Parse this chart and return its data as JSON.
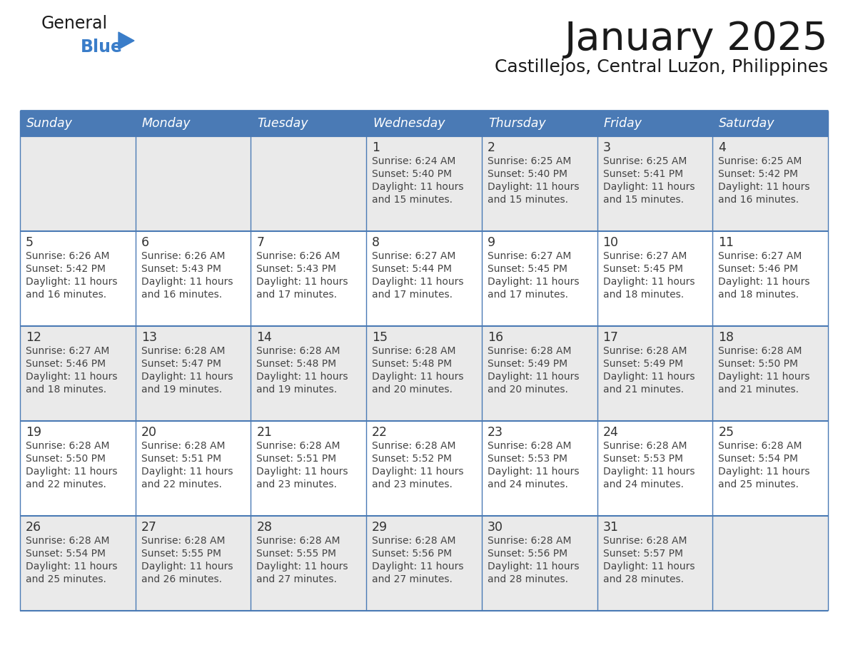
{
  "title": "January 2025",
  "subtitle": "Castillejos, Central Luzon, Philippines",
  "days_of_week": [
    "Sunday",
    "Monday",
    "Tuesday",
    "Wednesday",
    "Thursday",
    "Friday",
    "Saturday"
  ],
  "header_bg": "#4a7ab5",
  "header_text": "#FFFFFF",
  "row_bg_odd": "#EAEAEA",
  "row_bg_even": "#FFFFFF",
  "border_color": "#4a7ab5",
  "day_num_color": "#333333",
  "info_text_color": "#444444",
  "title_color": "#1a1a1a",
  "subtitle_color": "#1a1a1a",
  "logo_general_color": "#1a1a1a",
  "logo_blue_color": "#3A7DC9",
  "calendar_data": [
    [
      {
        "day": null,
        "sunrise": null,
        "sunset": null,
        "daylight": null
      },
      {
        "day": null,
        "sunrise": null,
        "sunset": null,
        "daylight": null
      },
      {
        "day": null,
        "sunrise": null,
        "sunset": null,
        "daylight": null
      },
      {
        "day": 1,
        "sunrise": "6:24 AM",
        "sunset": "5:40 PM",
        "daylight": "11 hours and 15 minutes."
      },
      {
        "day": 2,
        "sunrise": "6:25 AM",
        "sunset": "5:40 PM",
        "daylight": "11 hours and 15 minutes."
      },
      {
        "day": 3,
        "sunrise": "6:25 AM",
        "sunset": "5:41 PM",
        "daylight": "11 hours and 15 minutes."
      },
      {
        "day": 4,
        "sunrise": "6:25 AM",
        "sunset": "5:42 PM",
        "daylight": "11 hours and 16 minutes."
      }
    ],
    [
      {
        "day": 5,
        "sunrise": "6:26 AM",
        "sunset": "5:42 PM",
        "daylight": "11 hours and 16 minutes."
      },
      {
        "day": 6,
        "sunrise": "6:26 AM",
        "sunset": "5:43 PM",
        "daylight": "11 hours and 16 minutes."
      },
      {
        "day": 7,
        "sunrise": "6:26 AM",
        "sunset": "5:43 PM",
        "daylight": "11 hours and 17 minutes."
      },
      {
        "day": 8,
        "sunrise": "6:27 AM",
        "sunset": "5:44 PM",
        "daylight": "11 hours and 17 minutes."
      },
      {
        "day": 9,
        "sunrise": "6:27 AM",
        "sunset": "5:45 PM",
        "daylight": "11 hours and 17 minutes."
      },
      {
        "day": 10,
        "sunrise": "6:27 AM",
        "sunset": "5:45 PM",
        "daylight": "11 hours and 18 minutes."
      },
      {
        "day": 11,
        "sunrise": "6:27 AM",
        "sunset": "5:46 PM",
        "daylight": "11 hours and 18 minutes."
      }
    ],
    [
      {
        "day": 12,
        "sunrise": "6:27 AM",
        "sunset": "5:46 PM",
        "daylight": "11 hours and 18 minutes."
      },
      {
        "day": 13,
        "sunrise": "6:28 AM",
        "sunset": "5:47 PM",
        "daylight": "11 hours and 19 minutes."
      },
      {
        "day": 14,
        "sunrise": "6:28 AM",
        "sunset": "5:48 PM",
        "daylight": "11 hours and 19 minutes."
      },
      {
        "day": 15,
        "sunrise": "6:28 AM",
        "sunset": "5:48 PM",
        "daylight": "11 hours and 20 minutes."
      },
      {
        "day": 16,
        "sunrise": "6:28 AM",
        "sunset": "5:49 PM",
        "daylight": "11 hours and 20 minutes."
      },
      {
        "day": 17,
        "sunrise": "6:28 AM",
        "sunset": "5:49 PM",
        "daylight": "11 hours and 21 minutes."
      },
      {
        "day": 18,
        "sunrise": "6:28 AM",
        "sunset": "5:50 PM",
        "daylight": "11 hours and 21 minutes."
      }
    ],
    [
      {
        "day": 19,
        "sunrise": "6:28 AM",
        "sunset": "5:50 PM",
        "daylight": "11 hours and 22 minutes."
      },
      {
        "day": 20,
        "sunrise": "6:28 AM",
        "sunset": "5:51 PM",
        "daylight": "11 hours and 22 minutes."
      },
      {
        "day": 21,
        "sunrise": "6:28 AM",
        "sunset": "5:51 PM",
        "daylight": "11 hours and 23 minutes."
      },
      {
        "day": 22,
        "sunrise": "6:28 AM",
        "sunset": "5:52 PM",
        "daylight": "11 hours and 23 minutes."
      },
      {
        "day": 23,
        "sunrise": "6:28 AM",
        "sunset": "5:53 PM",
        "daylight": "11 hours and 24 minutes."
      },
      {
        "day": 24,
        "sunrise": "6:28 AM",
        "sunset": "5:53 PM",
        "daylight": "11 hours and 24 minutes."
      },
      {
        "day": 25,
        "sunrise": "6:28 AM",
        "sunset": "5:54 PM",
        "daylight": "11 hours and 25 minutes."
      }
    ],
    [
      {
        "day": 26,
        "sunrise": "6:28 AM",
        "sunset": "5:54 PM",
        "daylight": "11 hours and 25 minutes."
      },
      {
        "day": 27,
        "sunrise": "6:28 AM",
        "sunset": "5:55 PM",
        "daylight": "11 hours and 26 minutes."
      },
      {
        "day": 28,
        "sunrise": "6:28 AM",
        "sunset": "5:55 PM",
        "daylight": "11 hours and 27 minutes."
      },
      {
        "day": 29,
        "sunrise": "6:28 AM",
        "sunset": "5:56 PM",
        "daylight": "11 hours and 27 minutes."
      },
      {
        "day": 30,
        "sunrise": "6:28 AM",
        "sunset": "5:56 PM",
        "daylight": "11 hours and 28 minutes."
      },
      {
        "day": 31,
        "sunrise": "6:28 AM",
        "sunset": "5:57 PM",
        "daylight": "11 hours and 28 minutes."
      },
      {
        "day": null,
        "sunrise": null,
        "sunset": null,
        "daylight": null
      }
    ]
  ]
}
